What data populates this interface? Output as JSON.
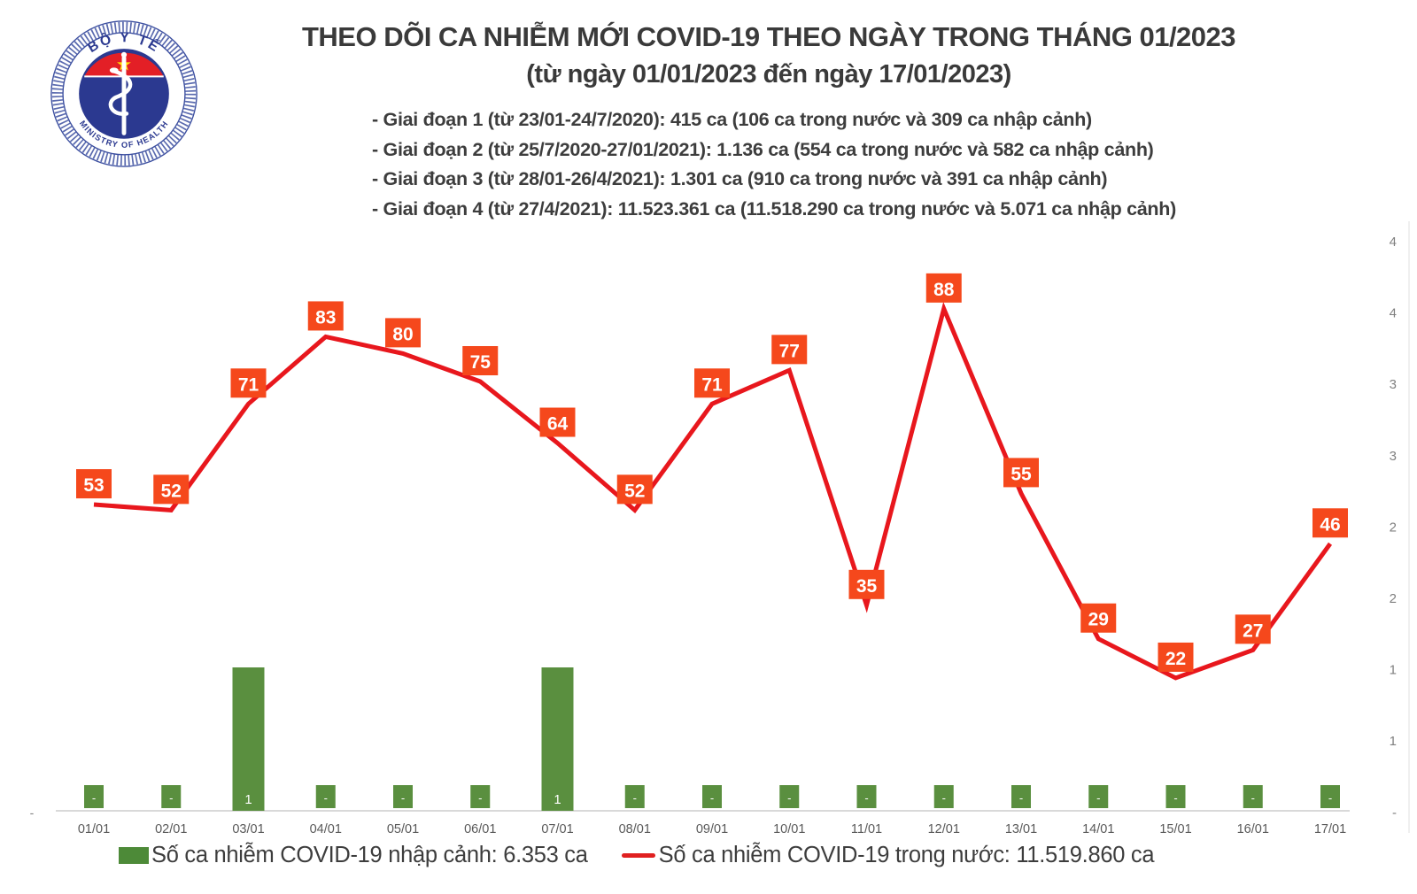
{
  "logo": {
    "top_text": "BỘ Y TẾ",
    "bottom_text": "MINISTRY OF HEALTH",
    "colors": {
      "blue": "#2b3990",
      "red": "#e31f26",
      "star_yellow": "#ffde00",
      "ring_blue": "#3c4fa0"
    }
  },
  "header": {
    "title": "THEO DÕI CA NHIỄM MỚI COVID-19 THEO NGÀY TRONG THÁNG 01/2023",
    "subtitle": "(từ ngày 01/01/2023 đến ngày 17/01/2023)"
  },
  "annotations": {
    "lines": [
      "- Giai đoạn 1 (từ 23/01-24/7/2020): 415 ca (106 ca trong nước và 309 ca nhập cảnh)",
      "- Giai đoạn 2 (từ 25/7/2020-27/01/2021): 1.136 ca (554 ca trong nước và 582 ca nhập cảnh)",
      "- Giai đoạn 3 (từ 28/01-26/4/2021): 1.301 ca (910 ca trong nước và 391 ca nhập cảnh)",
      "- Giai đoạn 4 (từ 27/4/2021): 11.523.361 ca (11.518.290 ca trong nước và 5.071 ca nhập cảnh)"
    ]
  },
  "chart_data": {
    "type": "combo",
    "categories": [
      "01/01",
      "02/01",
      "03/01",
      "04/01",
      "05/01",
      "06/01",
      "07/01",
      "08/01",
      "09/01",
      "10/01",
      "11/01",
      "12/01",
      "13/01",
      "14/01",
      "15/01",
      "16/01",
      "17/01"
    ],
    "series": [
      {
        "name": "Số ca nhiễm COVID-19 nhập cảnh",
        "type": "bar",
        "color": "#5a8f3f",
        "values": [
          0,
          0,
          1,
          0,
          0,
          0,
          1,
          0,
          0,
          0,
          0,
          0,
          0,
          0,
          0,
          0,
          0
        ],
        "labels": [
          "-",
          "-",
          "1",
          "-",
          "-",
          "-",
          "1",
          "-",
          "-",
          "-",
          "-",
          "-",
          "-",
          "-",
          "-",
          "-",
          "-"
        ]
      },
      {
        "name": "Số ca nhiễm COVID-19 trong nước",
        "type": "line",
        "color": "#e8171d",
        "label_box_color": "#f5481c",
        "values": [
          53,
          52,
          71,
          83,
          80,
          75,
          64,
          52,
          71,
          77,
          35,
          88,
          55,
          29,
          22,
          27,
          46
        ]
      }
    ],
    "right_axis_labels": [
      "4",
      "4",
      "3",
      "3",
      "2",
      "2",
      "1",
      "1",
      "-"
    ],
    "left_axis_bottom_label": "-",
    "x_tick_color": "#595959",
    "axis_label_color": "#7f7f7f",
    "baseline_color": "#d9d9d9",
    "grid": false,
    "legend_position": "bottom"
  },
  "legend": {
    "items": [
      {
        "swatch": "bar",
        "color": "#4d8a38",
        "label": "Số ca nhiễm COVID-19 nhập cảnh: 6.353 ca"
      },
      {
        "swatch": "line",
        "color": "#e02020",
        "label": "Số ca nhiễm COVID-19 trong nước: 11.519.860 ca"
      }
    ]
  }
}
